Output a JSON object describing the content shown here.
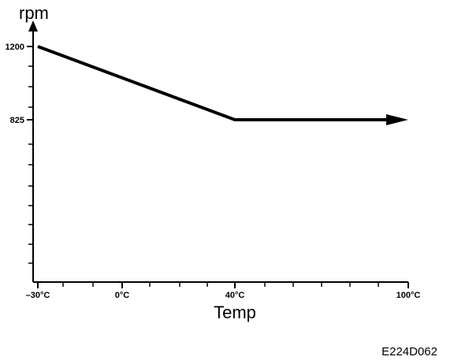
{
  "chart_data": {
    "type": "line",
    "title": "",
    "ylabel": "rpm",
    "xlabel": "Temp",
    "figure_code": "E224D062",
    "x_ticks": [
      {
        "value": -30,
        "label": "–30°C"
      },
      {
        "value": 0,
        "label": "0°C"
      },
      {
        "value": 40,
        "label": "40°C"
      },
      {
        "value": 100,
        "label": "100°C"
      }
    ],
    "y_ticks": [
      {
        "value": 1200,
        "label": "1200"
      },
      {
        "value": 825,
        "label": "825"
      }
    ],
    "xlim": [
      -30,
      100
    ],
    "ylim": [
      0,
      1200
    ],
    "grid": false,
    "series": [
      {
        "x": [
          -30,
          40,
          100
        ],
        "y": [
          1200,
          825,
          825
        ],
        "arrow_end": true
      }
    ]
  }
}
